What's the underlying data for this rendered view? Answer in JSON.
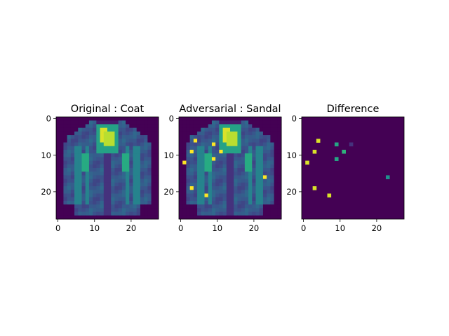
{
  "chart_data": [
    {
      "type": "heatmap",
      "title": "Original : Coat",
      "xticks": [
        0,
        10,
        20
      ],
      "yticks": [
        0,
        10,
        20
      ],
      "xlim": [
        -0.5,
        27.5
      ],
      "ylim": [
        27.5,
        -0.5
      ],
      "grid": false,
      "colormap": "viridis",
      "image": "Fashion-MNIST coat, 28x28 grayscale"
    },
    {
      "type": "heatmap",
      "title": "Adversarial : Sandal",
      "xticks": [
        0,
        10,
        20
      ],
      "yticks": [
        0,
        10,
        20
      ],
      "xlim": [
        -0.5,
        27.5
      ],
      "ylim": [
        27.5,
        -0.5
      ],
      "grid": false,
      "colormap": "viridis",
      "perturbed_pixels": [
        {
          "x": 4,
          "y": 6,
          "value": 1.0
        },
        {
          "x": 3,
          "y": 9,
          "value": 1.0
        },
        {
          "x": 1,
          "y": 12,
          "value": 1.0
        },
        {
          "x": 9,
          "y": 7,
          "value": 1.0
        },
        {
          "x": 11,
          "y": 9,
          "value": 1.0
        },
        {
          "x": 9,
          "y": 11,
          "value": 1.0
        },
        {
          "x": 23,
          "y": 16,
          "value": 1.0
        },
        {
          "x": 3,
          "y": 19,
          "value": 1.0
        },
        {
          "x": 7,
          "y": 21,
          "value": 1.0
        }
      ]
    },
    {
      "type": "heatmap",
      "title": "Difference",
      "xticks": [
        0,
        10,
        20
      ],
      "yticks": [
        0,
        10,
        20
      ],
      "xlim": [
        -0.5,
        27.5
      ],
      "ylim": [
        27.5,
        -0.5
      ],
      "grid": false,
      "colormap": "viridis",
      "points": [
        {
          "x": 4,
          "y": 6,
          "value": 0.95
        },
        {
          "x": 3,
          "y": 9,
          "value": 0.95
        },
        {
          "x": 1,
          "y": 12,
          "value": 0.95
        },
        {
          "x": 9,
          "y": 7,
          "value": 0.6
        },
        {
          "x": 11,
          "y": 9,
          "value": 0.65
        },
        {
          "x": 9,
          "y": 11,
          "value": 0.6
        },
        {
          "x": 13,
          "y": 7,
          "value": 0.15
        },
        {
          "x": 23,
          "y": 16,
          "value": 0.5
        },
        {
          "x": 3,
          "y": 19,
          "value": 0.95
        },
        {
          "x": 7,
          "y": 21,
          "value": 0.95
        }
      ]
    }
  ]
}
